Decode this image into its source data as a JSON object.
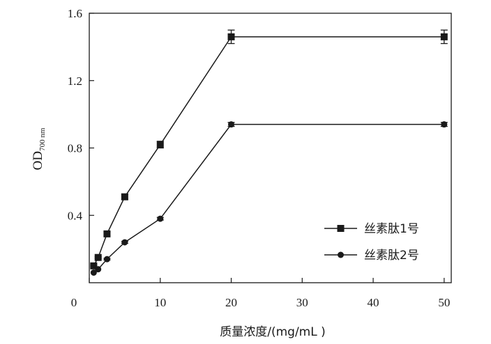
{
  "chart_data": {
    "type": "line",
    "xlabel": "质量浓度/(mg/mL )",
    "ylabel_main": "OD",
    "ylabel_sub": "700 nm",
    "xlim": [
      0,
      51
    ],
    "ylim": [
      0,
      1.6
    ],
    "xticks": [
      0,
      10,
      20,
      30,
      40,
      50
    ],
    "yticks": [
      0.4,
      0.8,
      1.2,
      1.6
    ],
    "xtick_labels": [
      "0",
      "10",
      "20",
      "30",
      "40",
      "50"
    ],
    "ytick_labels": [
      "0.4",
      "0.8",
      "1.2",
      "1.6"
    ],
    "grid": false,
    "legend_position": "bottom-right",
    "series": [
      {
        "name": "丝素肽1号",
        "marker": "square",
        "color": "#1a1a1a",
        "x": [
          0.625,
          1.25,
          2.5,
          5,
          10,
          20,
          50
        ],
        "y": [
          0.1,
          0.15,
          0.29,
          0.51,
          0.82,
          1.46,
          1.46
        ],
        "error": [
          0.005,
          0.005,
          0.01,
          0.015,
          0.02,
          0.04,
          0.04
        ]
      },
      {
        "name": "丝素肽2号",
        "marker": "circle",
        "color": "#1a1a1a",
        "x": [
          0.625,
          1.25,
          2.5,
          5,
          10,
          20,
          50
        ],
        "y": [
          0.06,
          0.08,
          0.14,
          0.24,
          0.38,
          0.94,
          0.94
        ],
        "error": [
          0.003,
          0.003,
          0.005,
          0.006,
          0.008,
          0.012,
          0.012
        ]
      }
    ]
  }
}
